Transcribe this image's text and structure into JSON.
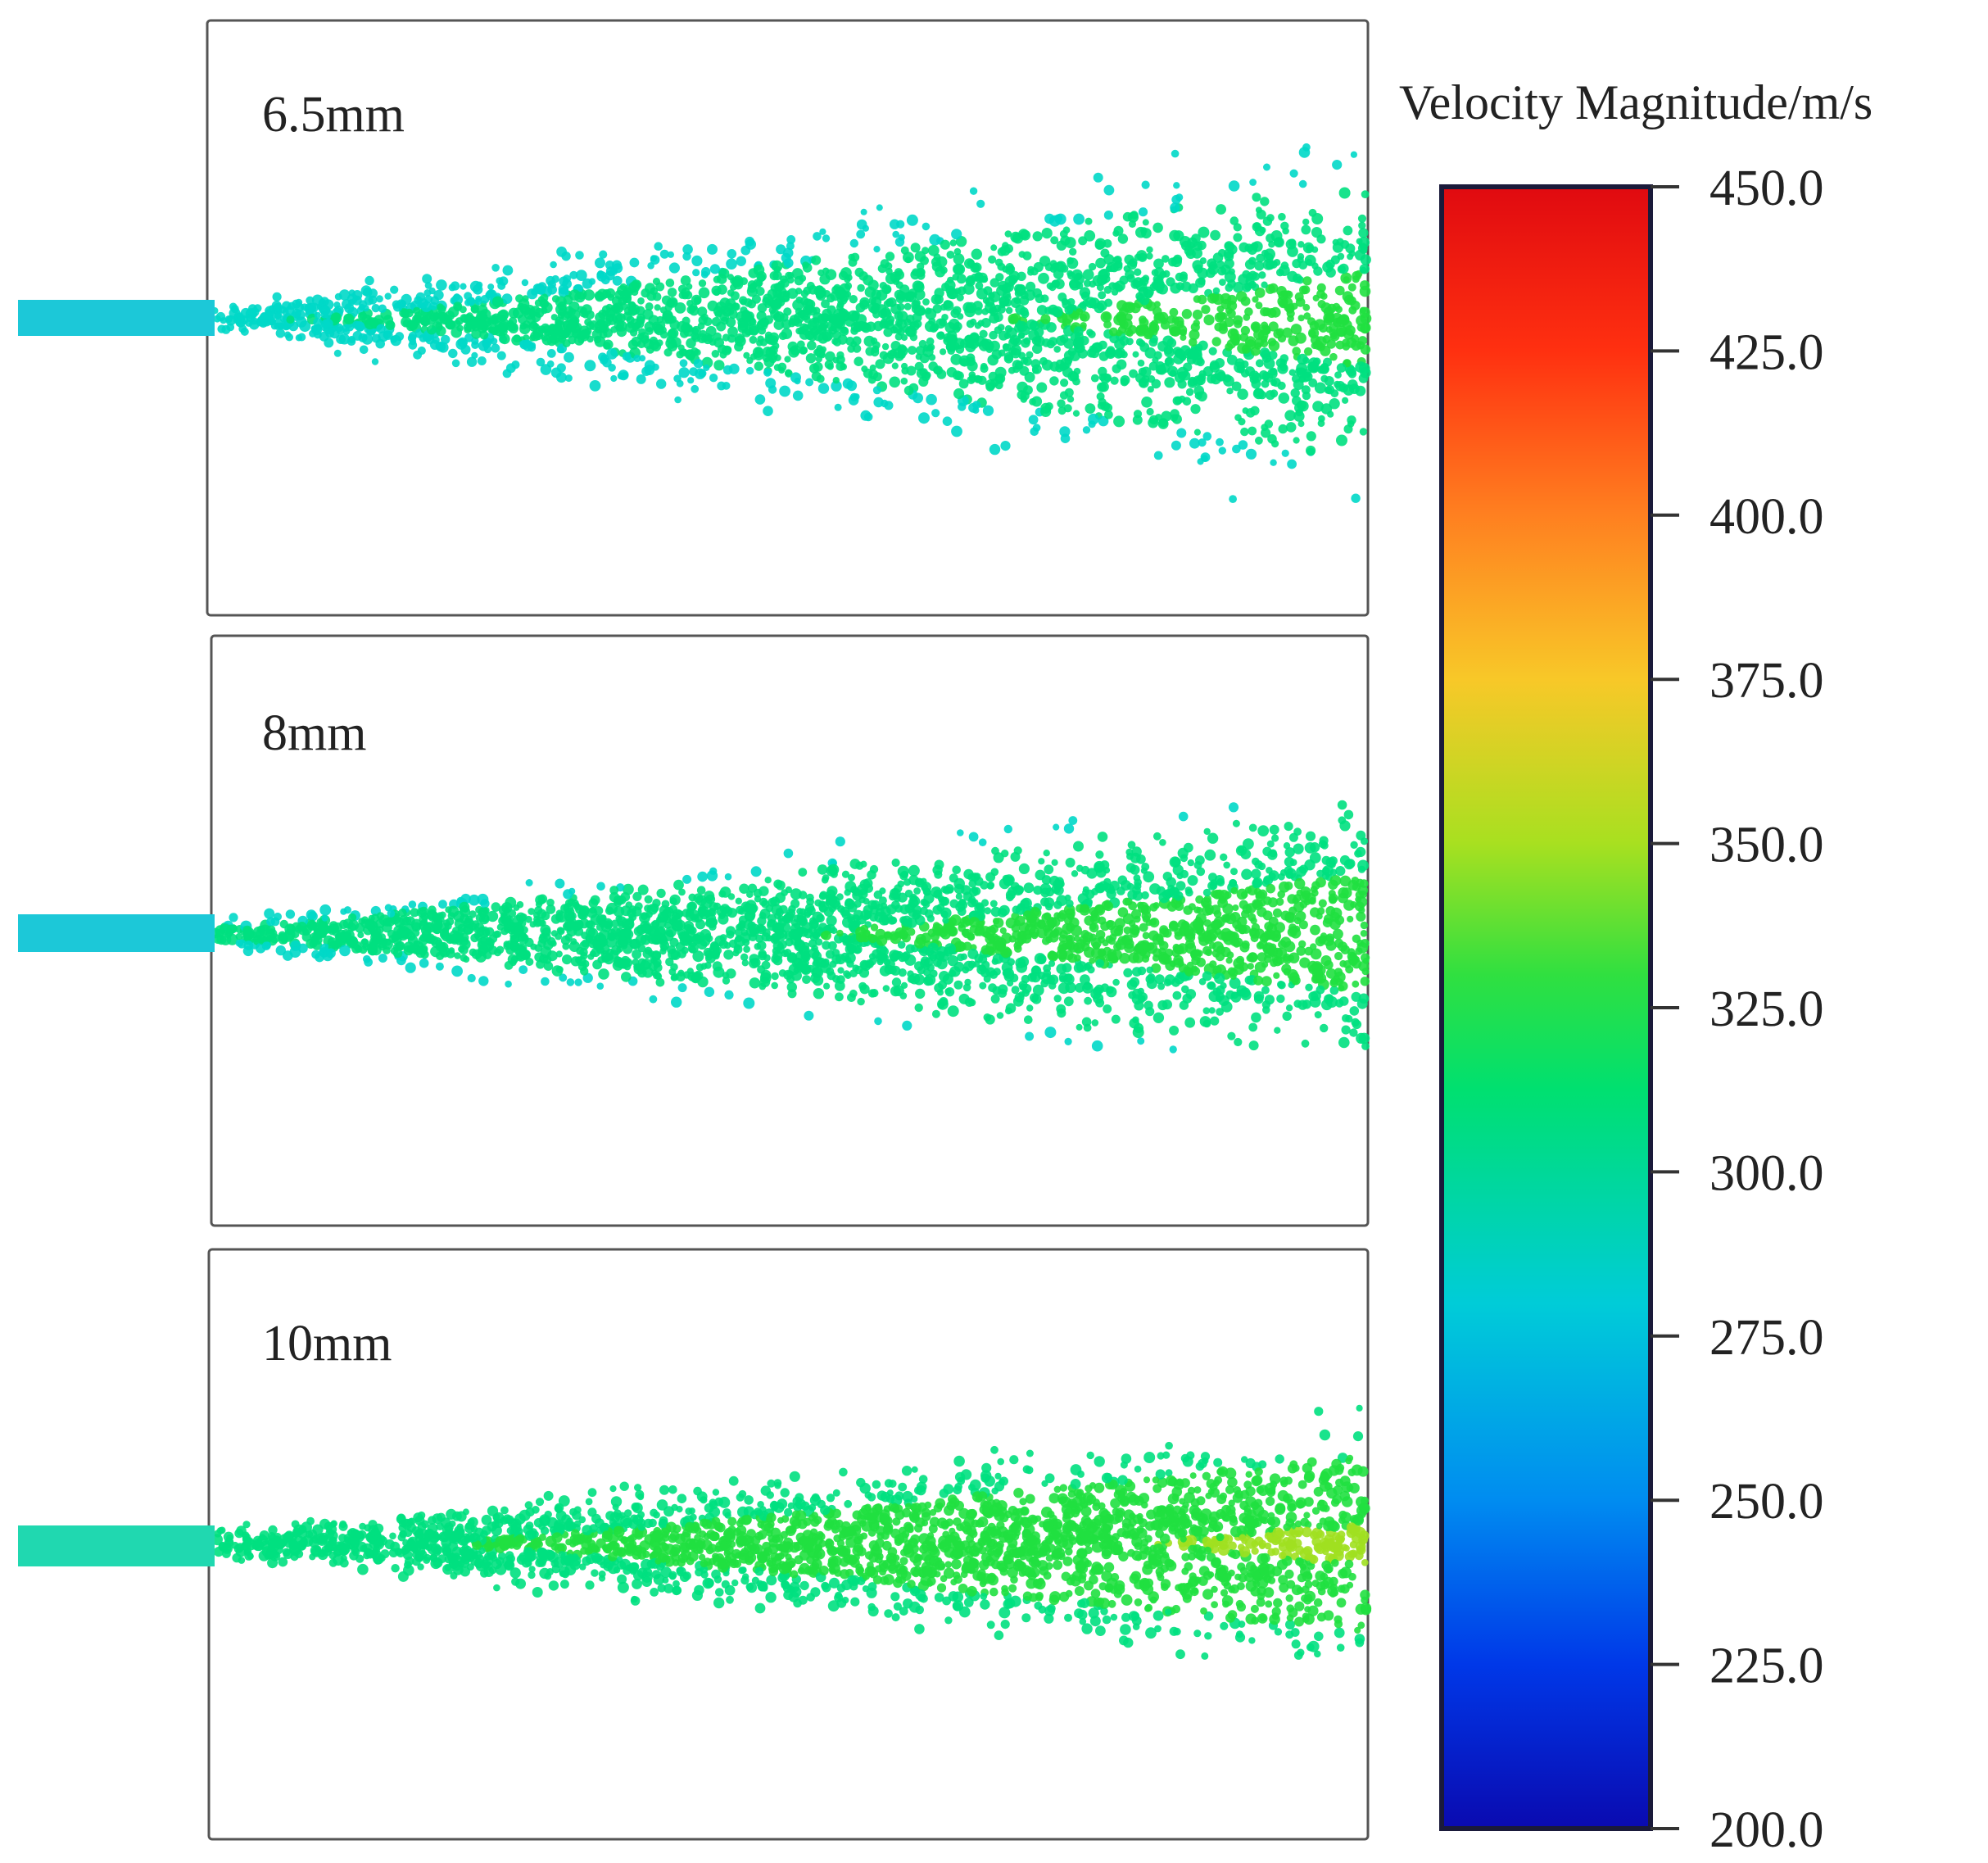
{
  "chart_data": {
    "type": "scatter",
    "panels": [
      {
        "label": "6.5mm",
        "spray_color_value": 285
      },
      {
        "label": "8mm",
        "spray_color_value": 292
      },
      {
        "label": "10mm",
        "spray_color_value": 305
      }
    ],
    "colorbar": {
      "title": "Velocity Magnitude/m/s",
      "min": 200,
      "max": 450,
      "ticks": [
        "450.0",
        "425.0",
        "400.0",
        "375.0",
        "350.0",
        "325.0",
        "300.0",
        "275.0",
        "250.0",
        "225.0",
        "200.0"
      ],
      "tick_values": [
        450,
        425,
        400,
        375,
        350,
        325,
        300,
        275,
        250,
        225,
        200
      ],
      "colors": [
        "#0000c8",
        "#0050f0",
        "#00a0e8",
        "#00d8c8",
        "#00e080",
        "#20e040",
        "#a0e020",
        "#f0d020",
        "#ff9020",
        "#ff4010",
        "#e00000"
      ]
    }
  }
}
